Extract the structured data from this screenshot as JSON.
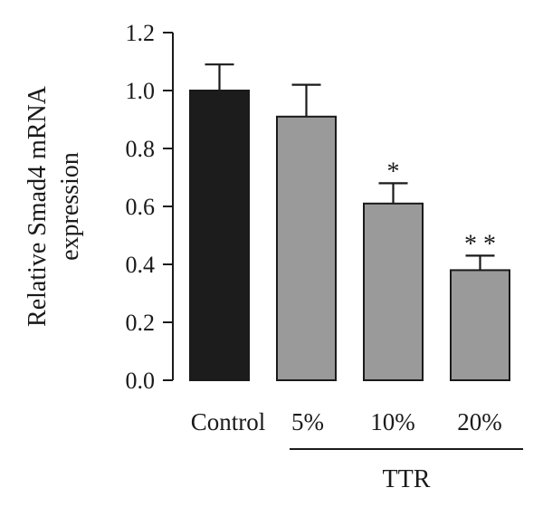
{
  "chart_data": {
    "type": "bar",
    "title": "",
    "ylabel": "Relative Smad4 mRNA expression",
    "ylabel_lines": [
      "Relative Smad4 mRNA",
      "expression"
    ],
    "xlabel": "",
    "ylim": [
      0,
      1.2
    ],
    "yticks": [
      "0.0",
      "0.2",
      "0.4",
      "0.6",
      "0.8",
      "1.0",
      "1.2"
    ],
    "ytick_values": [
      0,
      0.2,
      0.4,
      0.6,
      0.8,
      1.0,
      1.2
    ],
    "categories": [
      "Control",
      "5%",
      "10%",
      "20%"
    ],
    "values": [
      1.0,
      0.91,
      0.61,
      0.38
    ],
    "errors": [
      0.09,
      0.11,
      0.07,
      0.05
    ],
    "significance": [
      "",
      "",
      "*",
      "* *"
    ],
    "group_label": "TTR",
    "group_categories": [
      "5%",
      "10%",
      "20%"
    ],
    "bar_colors": [
      "#1c1c1c",
      "#9a9a9a",
      "#9a9a9a",
      "#9a9a9a"
    ],
    "grid": false,
    "legend": "none"
  }
}
